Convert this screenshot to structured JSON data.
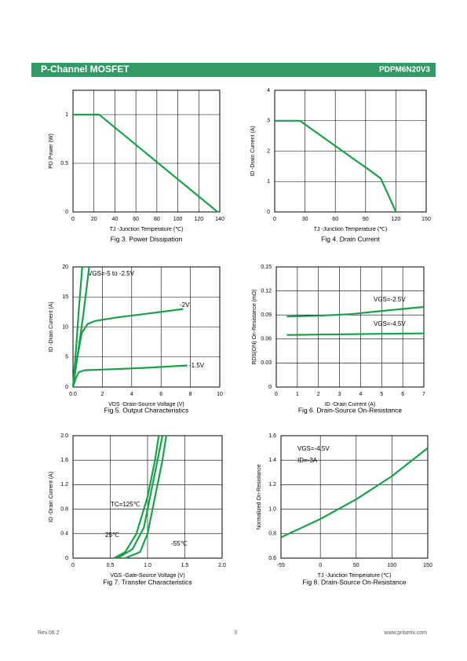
{
  "header": {
    "title": "P-Channel MOSFET",
    "part": "PDPM6N20V3"
  },
  "footer": {
    "revision": "Rev.06.2",
    "page": "3",
    "website": "www.prisemi.com"
  },
  "chart_data": [
    {
      "type": "line",
      "title": "Fig 3. Power Dissipation",
      "x_label": "TJ -Junction Temperature (℃)",
      "y_label": "PD Power (W)",
      "xlim": [
        0,
        140
      ],
      "xticks": [
        0,
        20,
        40,
        60,
        80,
        100,
        120,
        140
      ],
      "ylim": [
        0,
        1.25
      ],
      "yticks": [
        0,
        0.5,
        1
      ],
      "grid": true,
      "series": [
        {
          "color": "#1aa04a",
          "x": [
            0,
            25,
            138
          ],
          "values": [
            1,
            1,
            0
          ]
        }
      ]
    },
    {
      "type": "line",
      "title": "Fig 4. Drain Current",
      "x_label": "TJ -Junction Temperature (℃)",
      "y_label": "ID -Drain Current (A)",
      "xlim": [
        0,
        150
      ],
      "xticks": [
        0,
        30,
        60,
        90,
        120,
        150
      ],
      "ylim": [
        0,
        4
      ],
      "yticks": [
        0,
        1,
        2,
        3,
        4
      ],
      "grid": true,
      "series": [
        {
          "color": "#1aa04a",
          "x": [
            0,
            25,
            80,
            95,
            105,
            112,
            120
          ],
          "values": [
            3,
            3,
            1.7,
            1.35,
            1.1,
            0.6,
            0
          ]
        }
      ]
    },
    {
      "type": "line",
      "title": "Fig 5. Output Characteristics",
      "x_label": "VDS -Drain-Source Voltage (V)",
      "y_label": "ID -Drain Current (A)",
      "xlim": [
        0,
        10
      ],
      "xticks": [
        {
          "value": 0,
          "label": "0.0"
        },
        2,
        4,
        6,
        8,
        10
      ],
      "ylim": [
        0,
        20
      ],
      "yticks": [
        0,
        5,
        10,
        15,
        20
      ],
      "grid": true,
      "series": [
        {
          "name": "VGS=-5 to -2.5V",
          "color": "#1aa04a",
          "x": [
            0,
            0.2,
            0.4,
            0.63
          ],
          "values": [
            0,
            6,
            13,
            20
          ]
        },
        {
          "color": "#1aa04a",
          "x": [
            0,
            0.3,
            0.7,
            1.1
          ],
          "values": [
            0,
            5,
            12,
            20
          ]
        },
        {
          "name": "-2V",
          "color": "#1aa04a",
          "x": [
            0,
            0.3,
            0.6,
            1,
            1.5,
            3,
            5,
            7.5
          ],
          "values": [
            0,
            5,
            9,
            10.5,
            11,
            11.6,
            12.2,
            13
          ]
        },
        {
          "name": "-1.5V",
          "color": "#1aa04a",
          "x": [
            0,
            0.2,
            0.4,
            0.8,
            2,
            5,
            7.8
          ],
          "values": [
            0,
            1.5,
            2.5,
            2.8,
            2.9,
            3.2,
            3.6
          ]
        }
      ]
    },
    {
      "type": "line",
      "title": "Fig 6. Drain-Source On-Resistance",
      "x_label": "ID -Drain Current (A)",
      "y_label": "RDS(ON) On-Resistance (mΩ)",
      "xlim": [
        0,
        7
      ],
      "xticks": [
        0,
        1,
        2,
        3,
        4,
        5,
        6,
        7
      ],
      "ylim": [
        0,
        0.15
      ],
      "yticks": [
        0,
        0.03,
        0.06,
        0.09,
        0.12,
        0.15
      ],
      "grid": true,
      "series": [
        {
          "name": "VGS=-2.5V",
          "color": "#1aa04a",
          "x": [
            0.5,
            2,
            3.5,
            5,
            7
          ],
          "values": [
            0.088,
            0.089,
            0.091,
            0.095,
            0.1
          ]
        },
        {
          "name": "VGS=-4.5V",
          "color": "#1aa04a",
          "x": [
            0.5,
            2,
            3.5,
            5,
            7
          ],
          "values": [
            0.065,
            0.0655,
            0.066,
            0.0665,
            0.067
          ]
        }
      ]
    },
    {
      "type": "line",
      "title": "Fig 7. Transfer Characteristics",
      "x_label": "VGS -Gate-Source Voltage (V)",
      "y_label": "ID -Drain Current (A)",
      "xlim": [
        0,
        2
      ],
      "xticks": [
        0,
        0.5,
        {
          "value": 1,
          "label": "1.0"
        },
        1.5,
        {
          "value": 2,
          "label": "2.0"
        }
      ],
      "ylim": [
        0,
        2
      ],
      "yticks": [
        0,
        0.4,
        0.8,
        1.2,
        1.6,
        {
          "value": 2,
          "label": "2.0"
        }
      ],
      "grid": true,
      "series": [
        {
          "name": "TC=125℃",
          "color": "#1aa04a",
          "x": [
            0.55,
            0.7,
            0.85,
            1.0,
            1.1,
            1.15
          ],
          "values": [
            0,
            0.1,
            0.4,
            1.0,
            1.6,
            2.0
          ]
        },
        {
          "name": "25℃",
          "color": "#1aa04a",
          "x": [
            0.6,
            0.8,
            0.95,
            1.05,
            1.15,
            1.2
          ],
          "values": [
            0,
            0.15,
            0.5,
            1.1,
            1.7,
            2.0
          ]
        },
        {
          "name": "-55℃",
          "color": "#1aa04a",
          "x": [
            0.7,
            0.9,
            1.0,
            1.1,
            1.2,
            1.25
          ],
          "values": [
            0,
            0.1,
            0.4,
            1.0,
            1.6,
            2.0
          ]
        }
      ]
    },
    {
      "type": "line",
      "title": "Fig 8. Drain-Source On-Resistance",
      "x_label": "TJ -Junction Temperature (℃)",
      "y_label": "Normalized On-Resistance",
      "annotations": [
        "VGS=-4.5V",
        "ID=-3A"
      ],
      "xlim": [
        -55,
        150
      ],
      "xticks": [
        -55,
        0,
        50,
        100,
        150
      ],
      "ylim": [
        0.6,
        1.6
      ],
      "yticks": [
        0.6,
        0.8,
        {
          "value": 1,
          "label": "1.0"
        },
        1.2,
        1.4,
        1.6
      ],
      "grid": true,
      "series": [
        {
          "color": "#1aa04a",
          "x": [
            -55,
            0,
            50,
            100,
            150
          ],
          "values": [
            0.77,
            0.92,
            1.08,
            1.27,
            1.5
          ]
        }
      ]
    }
  ]
}
